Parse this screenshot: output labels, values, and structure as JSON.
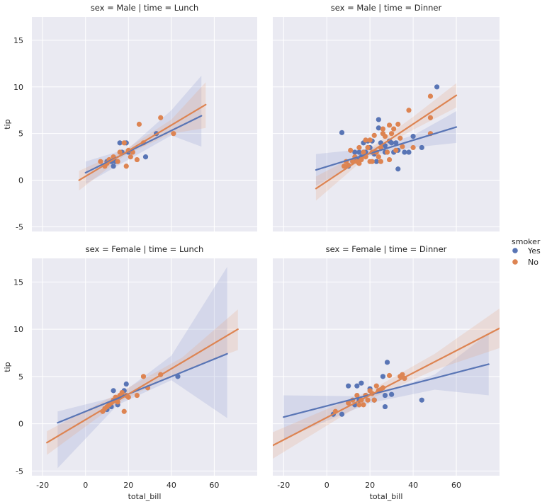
{
  "legend": {
    "title": "smoker",
    "entries": [
      {
        "label": "Yes",
        "color": "#5975b5"
      },
      {
        "label": "No",
        "color": "#dd8452"
      }
    ],
    "placement": "right"
  },
  "colors": {
    "background": "#eaeaf2",
    "grid": "#ffffff",
    "yes": "#5975b5",
    "no": "#dd8452",
    "yes_band": "#8a98cf",
    "no_band": "#e9a27d"
  },
  "chart_data": [
    {
      "type": "scatter",
      "title": "sex = Male | time = Lunch",
      "xlabel": "",
      "ylabel": "tip",
      "xlim": [
        -25,
        80
      ],
      "ylim": [
        -5.5,
        17.5
      ],
      "xticks": [],
      "yticks": [
        15,
        10,
        5,
        0,
        -5
      ],
      "grid": true,
      "series": [
        {
          "name": "Yes",
          "points": [
            [
              10,
              2
            ],
            [
              12,
              2
            ],
            [
              14,
              2
            ],
            [
              13,
              1.5
            ],
            [
              16,
              4
            ],
            [
              17,
              3
            ],
            [
              19,
              4
            ],
            [
              20,
              3
            ],
            [
              28,
              2.5
            ],
            [
              33,
              5
            ]
          ],
          "fit": [
            [
              0,
              0.8
            ],
            [
              54,
              6.9
            ]
          ],
          "ci_upper": [
            [
              0,
              2.0
            ],
            [
              20,
              3.4
            ],
            [
              40,
              7.5
            ],
            [
              54,
              11.2
            ]
          ],
          "ci_lower": [
            [
              0,
              -0.4
            ],
            [
              20,
              2.2
            ],
            [
              40,
              4.8
            ],
            [
              54,
              3.6
            ]
          ]
        },
        {
          "name": "No",
          "points": [
            [
              7,
              2
            ],
            [
              9,
              1.5
            ],
            [
              10,
              1.8
            ],
            [
              11,
              2.2
            ],
            [
              13,
              2.5
            ],
            [
              15,
              2
            ],
            [
              16,
              3
            ],
            [
              18,
              4
            ],
            [
              19,
              1.5
            ],
            [
              20,
              3.2
            ],
            [
              21,
              2.5
            ],
            [
              22,
              3
            ],
            [
              24,
              2.2
            ],
            [
              25,
              6
            ],
            [
              27,
              4
            ],
            [
              35,
              6.7
            ],
            [
              41,
              5
            ]
          ],
          "fit": [
            [
              -3,
              0
            ],
            [
              56,
              8.1
            ]
          ],
          "ci_upper": [
            [
              -3,
              1.0
            ],
            [
              18,
              3.2
            ],
            [
              40,
              6.5
            ],
            [
              56,
              10.5
            ]
          ],
          "ci_lower": [
            [
              -3,
              -1.1
            ],
            [
              18,
              2.6
            ],
            [
              40,
              5.0
            ],
            [
              56,
              5.6
            ]
          ]
        }
      ]
    },
    {
      "type": "scatter",
      "title": "sex = Male | time = Dinner",
      "xlabel": "",
      "ylabel": "",
      "xlim": [
        -25,
        80
      ],
      "ylim": [
        -5.5,
        17.5
      ],
      "xticks": [],
      "yticks": [],
      "grid": true,
      "series": [
        {
          "name": "Yes",
          "points": [
            [
              7,
              5.1
            ],
            [
              10,
              1.5
            ],
            [
              12,
              2
            ],
            [
              13,
              3
            ],
            [
              14,
              2.2
            ],
            [
              15,
              3
            ],
            [
              16,
              2.5
            ],
            [
              17,
              4
            ],
            [
              18,
              3
            ],
            [
              19,
              4.2
            ],
            [
              20,
              3.5
            ],
            [
              21,
              4.2
            ],
            [
              22,
              3
            ],
            [
              22,
              2.8
            ],
            [
              23,
              2
            ],
            [
              24,
              6.5
            ],
            [
              24,
              5.6
            ],
            [
              25,
              4
            ],
            [
              26,
              5
            ],
            [
              27,
              3
            ],
            [
              27,
              3.7
            ],
            [
              29,
              4.2
            ],
            [
              30,
              4
            ],
            [
              31,
              3
            ],
            [
              32,
              4
            ],
            [
              33,
              3.2
            ],
            [
              33,
              1.2
            ],
            [
              36,
              3
            ],
            [
              38,
              3
            ],
            [
              40,
              4.7
            ],
            [
              44,
              3.5
            ],
            [
              51,
              10
            ]
          ],
          "fit": [
            [
              -5,
              1.1
            ],
            [
              60,
              5.7
            ]
          ],
          "ci_upper": [
            [
              -5,
              2.8
            ],
            [
              20,
              3.4
            ],
            [
              40,
              4.8
            ],
            [
              60,
              7.4
            ]
          ],
          "ci_lower": [
            [
              -5,
              -0.6
            ],
            [
              20,
              2.6
            ],
            [
              40,
              3.5
            ],
            [
              60,
              4.0
            ]
          ]
        },
        {
          "name": "No",
          "points": [
            [
              8,
              1.5
            ],
            [
              9,
              2
            ],
            [
              10,
              1.6
            ],
            [
              11,
              3.2
            ],
            [
              12,
              2
            ],
            [
              13,
              2.5
            ],
            [
              14,
              2
            ],
            [
              15,
              3.5
            ],
            [
              15,
              1.8
            ],
            [
              16,
              2.2
            ],
            [
              17,
              3
            ],
            [
              18,
              2.5
            ],
            [
              18,
              4.3
            ],
            [
              19,
              3.5
            ],
            [
              20,
              4.3
            ],
            [
              20,
              2
            ],
            [
              21,
              3
            ],
            [
              21,
              2
            ],
            [
              22,
              4.8
            ],
            [
              23,
              3
            ],
            [
              24,
              2.5
            ],
            [
              25,
              3.5
            ],
            [
              25,
              2
            ],
            [
              26,
              5.5
            ],
            [
              26,
              5
            ],
            [
              27,
              4.7
            ],
            [
              28,
              3
            ],
            [
              29,
              5.9
            ],
            [
              29,
              2.2
            ],
            [
              30,
              5
            ],
            [
              31,
              5.5
            ],
            [
              32,
              3.2
            ],
            [
              33,
              6
            ],
            [
              34,
              4.5
            ],
            [
              35,
              3.6
            ],
            [
              38,
              7.5
            ],
            [
              40,
              3.5
            ],
            [
              48,
              6.7
            ],
            [
              48,
              9
            ],
            [
              48,
              5
            ]
          ],
          "fit": [
            [
              -5,
              -0.9
            ],
            [
              60,
              9.1
            ]
          ],
          "ci_upper": [
            [
              -5,
              0.4
            ],
            [
              20,
              3.4
            ],
            [
              40,
              6.8
            ],
            [
              60,
              10.4
            ]
          ],
          "ci_lower": [
            [
              -5,
              -2.2
            ],
            [
              20,
              2.8
            ],
            [
              40,
              5.4
            ],
            [
              60,
              7.8
            ]
          ]
        }
      ]
    },
    {
      "type": "scatter",
      "title": "sex = Female | time = Lunch",
      "xlabel": "total_bill",
      "ylabel": "tip",
      "xlim": [
        -25,
        80
      ],
      "ylim": [
        -5.5,
        17.5
      ],
      "xticks": [
        -20,
        0,
        20,
        40,
        60
      ],
      "yticks": [
        15,
        10,
        5,
        0,
        -5
      ],
      "grid": true,
      "series": [
        {
          "name": "Yes",
          "points": [
            [
              10,
              1.5
            ],
            [
              11,
              2
            ],
            [
              12,
              1.8
            ],
            [
              13,
              3.5
            ],
            [
              14,
              2.5
            ],
            [
              15,
              2
            ],
            [
              16,
              2.8
            ],
            [
              17,
              3
            ],
            [
              18,
              3.5
            ],
            [
              19,
              4.2
            ],
            [
              43,
              5
            ]
          ],
          "fit": [
            [
              -13,
              0.1
            ],
            [
              66,
              7.4
            ]
          ],
          "ci_upper": [
            [
              -13,
              1.3
            ],
            [
              15,
              2.9
            ],
            [
              40,
              7.2
            ],
            [
              66,
              16.6
            ]
          ],
          "ci_lower": [
            [
              -13,
              -4.7
            ],
            [
              15,
              2.0
            ],
            [
              40,
              4.6
            ],
            [
              66,
              0.6
            ]
          ]
        },
        {
          "name": "No",
          "points": [
            [
              8,
              1.3
            ],
            [
              9,
              1.6
            ],
            [
              10,
              1.8
            ],
            [
              11,
              2
            ],
            [
              12,
              2.2
            ],
            [
              13,
              2.5
            ],
            [
              14,
              2.8
            ],
            [
              15,
              2.3
            ],
            [
              16,
              3
            ],
            [
              17,
              3.3
            ],
            [
              18,
              1.3
            ],
            [
              19,
              3
            ],
            [
              20,
              2.8
            ],
            [
              24,
              3
            ],
            [
              27,
              5
            ],
            [
              29,
              3.8
            ],
            [
              35,
              5.2
            ]
          ],
          "fit": [
            [
              -18,
              -2.0
            ],
            [
              71,
              10.0
            ]
          ],
          "ci_upper": [
            [
              -18,
              -0.8
            ],
            [
              15,
              3.2
            ],
            [
              45,
              7.0
            ],
            [
              71,
              12.1
            ]
          ],
          "ci_lower": [
            [
              -18,
              -3.3
            ],
            [
              15,
              2.2
            ],
            [
              45,
              5.6
            ],
            [
              71,
              7.8
            ]
          ]
        }
      ]
    },
    {
      "type": "scatter",
      "title": "sex = Female | time = Dinner",
      "xlabel": "total_bill",
      "ylabel": "",
      "xlim": [
        -25,
        80
      ],
      "ylim": [
        -5.5,
        17.5
      ],
      "xticks": [
        -20,
        0,
        20,
        40,
        60
      ],
      "yticks": [],
      "grid": true,
      "series": [
        {
          "name": "Yes",
          "points": [
            [
              3,
              1
            ],
            [
              7,
              1
            ],
            [
              10,
              4
            ],
            [
              13,
              2
            ],
            [
              14,
              4
            ],
            [
              15,
              2.5
            ],
            [
              16,
              4.3
            ],
            [
              18,
              3
            ],
            [
              20,
              3.7
            ],
            [
              22,
              2.5
            ],
            [
              24,
              3.5
            ],
            [
              26,
              5
            ],
            [
              27,
              3
            ],
            [
              27,
              1.8
            ],
            [
              28,
              6.5
            ],
            [
              30,
              3.1
            ],
            [
              44,
              2.5
            ]
          ],
          "fit": [
            [
              -20,
              0.7
            ],
            [
              75,
              6.3
            ]
          ],
          "ci_upper": [
            [
              -20,
              3.0
            ],
            [
              20,
              2.9
            ],
            [
              50,
              5.2
            ],
            [
              75,
              9.6
            ]
          ],
          "ci_lower": [
            [
              -20,
              -1.6
            ],
            [
              20,
              2.2
            ],
            [
              50,
              3.6
            ],
            [
              75,
              3.0
            ]
          ]
        },
        {
          "name": "No",
          "points": [
            [
              4,
              1.3
            ],
            [
              10,
              2.2
            ],
            [
              12,
              2.5
            ],
            [
              14,
              3
            ],
            [
              15,
              2
            ],
            [
              16,
              2.5
            ],
            [
              17,
              2
            ],
            [
              18,
              3
            ],
            [
              19,
              2.5
            ],
            [
              20,
              3.5
            ],
            [
              21,
              3.2
            ],
            [
              22,
              2.5
            ],
            [
              23,
              4
            ],
            [
              24,
              3.5
            ],
            [
              25,
              3.6
            ],
            [
              26,
              3.8
            ],
            [
              29,
              5.1
            ],
            [
              34,
              5
            ],
            [
              35,
              5.2
            ],
            [
              36,
              4.8
            ]
          ],
          "fit": [
            [
              -25,
              -2.3
            ],
            [
              80,
              10.1
            ]
          ],
          "ci_upper": [
            [
              -25,
              -0.9
            ],
            [
              20,
              3.5
            ],
            [
              50,
              7.4
            ],
            [
              80,
              12.2
            ]
          ],
          "ci_lower": [
            [
              -25,
              -3.7
            ],
            [
              20,
              2.6
            ],
            [
              50,
              5.7
            ],
            [
              80,
              8.0
            ]
          ]
        }
      ]
    }
  ]
}
